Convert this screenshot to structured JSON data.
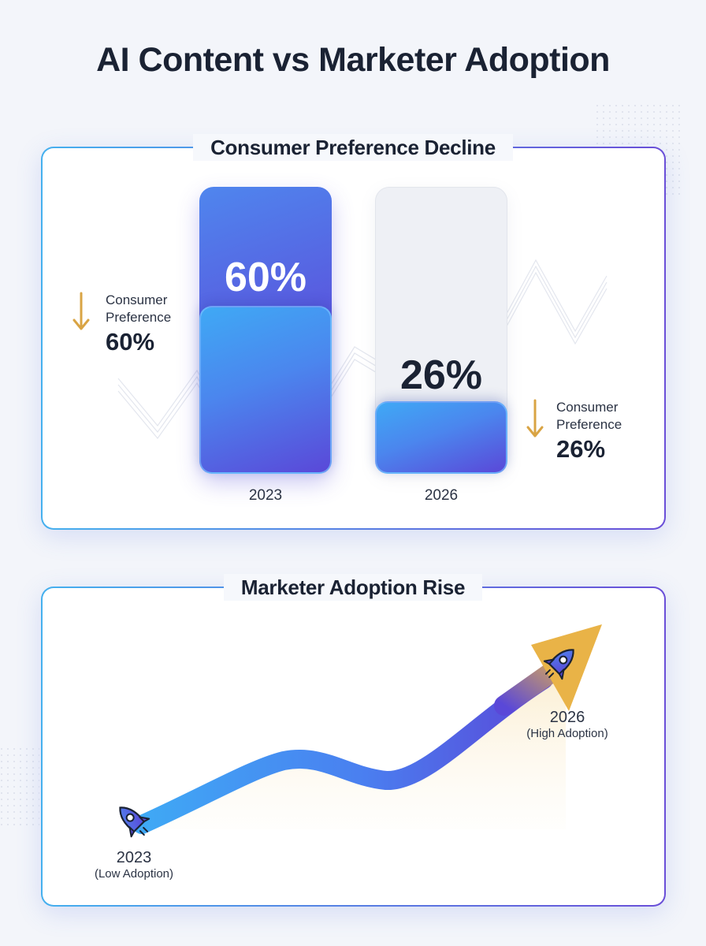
{
  "title": "AI Content vs Marketer Adoption",
  "colors": {
    "blue_start": "#3fa9f5",
    "blue_end": "#5a48d8",
    "gold": "#e9b347",
    "arrow_gold": "#d9a444",
    "track_grey": "#eef0f5",
    "text_dark": "#1a2233"
  },
  "chart_data": [
    {
      "type": "bar",
      "title": "Consumer Preference Decline",
      "categories": [
        "2023",
        "2026"
      ],
      "values": [
        60,
        26
      ],
      "value_labels": [
        "60%",
        "26%"
      ],
      "ylim": [
        0,
        100
      ],
      "annotations": [
        {
          "icon": "down-arrow-icon",
          "label": "Consumer Preference",
          "value": "60%"
        },
        {
          "icon": "down-arrow-icon",
          "label": "Consumer Preference",
          "value": "26%"
        }
      ]
    },
    {
      "type": "line",
      "title": "Marketer Adoption Rise",
      "points": [
        {
          "year": "2023",
          "label": "(Low Adoption)",
          "icon": "rocket-icon"
        },
        {
          "year": "2026",
          "label": "(High Adoption)",
          "icon": "rocket-icon"
        }
      ]
    }
  ]
}
